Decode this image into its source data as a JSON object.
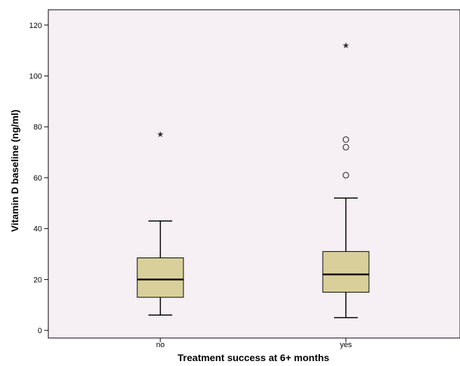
{
  "chart_data": {
    "type": "boxplot",
    "xlabel": "Treatment success at 6+ months",
    "ylabel": "Vitamin D baseline (ng/ml)",
    "ylim": [
      -3,
      126
    ],
    "yticks": [
      0,
      20,
      40,
      60,
      80,
      100,
      120
    ],
    "grid": false,
    "legend": "none",
    "colors": {
      "plot_background": "#f6eff3",
      "box_fill": "#d9cf9a",
      "line": "#000000"
    },
    "categories": [
      "no",
      "yes"
    ],
    "boxes": [
      {
        "category": "no",
        "whisker_low": 6,
        "q1": 13,
        "median": 20,
        "q3": 28.5,
        "whisker_high": 43,
        "outliers": [],
        "extremes": [
          77
        ]
      },
      {
        "category": "yes",
        "whisker_low": 5,
        "q1": 15,
        "median": 22,
        "q3": 31,
        "whisker_high": 52,
        "outliers": [
          61,
          72,
          75
        ],
        "extremes": [
          112
        ]
      }
    ]
  }
}
